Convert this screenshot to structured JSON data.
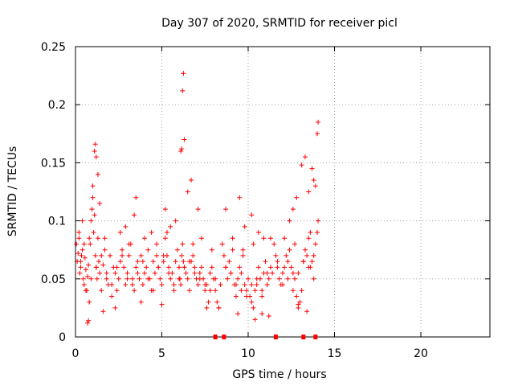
{
  "chart_data": {
    "type": "scatter",
    "title": "Day 307 of 2020, SRMTID for receiver picl",
    "xlabel": "GPS time / hours",
    "ylabel": "SRMTID / TECUs",
    "xlim": [
      0,
      24
    ],
    "ylim": [
      0,
      0.25
    ],
    "x_ticks": [
      0,
      5,
      10,
      15,
      20
    ],
    "x_tick_labels": [
      "0",
      "5",
      "10",
      "15",
      "20"
    ],
    "y_ticks": [
      0,
      0.05,
      0.1,
      0.15,
      0.2,
      0.25
    ],
    "y_tick_labels": [
      "0",
      "0.05",
      "0.1",
      "0.15",
      "0.2",
      "0.25"
    ],
    "grid": true,
    "marker": "plus",
    "color": "#ff0000",
    "series": [
      {
        "name": "SRMTID",
        "x": [
          0.05,
          0.1,
          0.15,
          0.2,
          0.25,
          0.3,
          0.35,
          0.4,
          0.45,
          0.5,
          0.55,
          0.6,
          0.65,
          0.7,
          0.75,
          0.8,
          0.85,
          0.9,
          0.95,
          1.0,
          1.05,
          1.1,
          1.15,
          1.2,
          1.25,
          1.3,
          1.35,
          1.4,
          1.5,
          1.6,
          1.7,
          1.8,
          1.9,
          2.0,
          2.1,
          2.2,
          2.3,
          2.4,
          2.5,
          2.6,
          2.7,
          2.8,
          2.9,
          3.0,
          3.1,
          3.2,
          3.3,
          3.4,
          3.5,
          3.6,
          3.7,
          3.8,
          3.9,
          4.0,
          4.1,
          4.2,
          4.3,
          4.4,
          4.5,
          4.6,
          4.7,
          4.8,
          4.9,
          5.0,
          5.1,
          5.2,
          5.3,
          5.4,
          5.5,
          5.6,
          5.7,
          5.8,
          5.9,
          6.0,
          6.05,
          6.1,
          6.15,
          6.2,
          6.25,
          6.3,
          6.4,
          6.5,
          6.6,
          6.7,
          6.8,
          6.9,
          7.0,
          7.1,
          7.2,
          7.3,
          7.4,
          7.5,
          7.6,
          7.7,
          7.8,
          7.9,
          8.0,
          8.1,
          8.2,
          8.3,
          8.4,
          8.6,
          8.7,
          8.8,
          8.9,
          9.0,
          9.1,
          9.2,
          9.3,
          9.4,
          9.5,
          9.6,
          9.7,
          9.8,
          9.9,
          10.0,
          10.1,
          10.2,
          10.3,
          10.4,
          10.5,
          10.6,
          10.7,
          10.8,
          10.9,
          11.0,
          11.1,
          11.2,
          11.3,
          11.4,
          11.6,
          11.7,
          11.8,
          11.9,
          12.0,
          12.1,
          12.2,
          12.3,
          12.4,
          12.5,
          12.6,
          12.7,
          12.8,
          12.9,
          13.0,
          13.1,
          13.2,
          13.3,
          13.4,
          13.5,
          13.6,
          13.7,
          13.8,
          13.9,
          14.0,
          14.05,
          0.3,
          0.6,
          0.9,
          1.2,
          1.5,
          1.8,
          2.1,
          2.4,
          2.7,
          3.0,
          3.3,
          3.6,
          3.9,
          4.2,
          4.5,
          4.8,
          5.1,
          5.4,
          5.7,
          6.0,
          6.3,
          6.6,
          6.9,
          7.2,
          7.5,
          7.8,
          8.1,
          8.7,
          9.0,
          9.3,
          9.6,
          9.9,
          10.2,
          10.5,
          10.8,
          11.1,
          11.7,
          12.0,
          12.3,
          12.6,
          12.9,
          13.2,
          13.5,
          13.8,
          0.4,
          0.8,
          1.0,
          1.1,
          1.15,
          1.2,
          1.3,
          1.4,
          2.9,
          3.4,
          3.5,
          4.4,
          5.2,
          5.5,
          5.8,
          6.1,
          6.15,
          6.2,
          6.25,
          6.3,
          6.5,
          6.7,
          7.1,
          8.7,
          9.5,
          9.8,
          10.2,
          10.6,
          11.3,
          12.4,
          12.6,
          12.8,
          13.1,
          13.3,
          13.5,
          13.7,
          13.8,
          13.9,
          14.0,
          14.05,
          0.7,
          0.75,
          1.6,
          2.3,
          3.8,
          5.0,
          7.6,
          8.3,
          9.4,
          10.4,
          10.8,
          11.2,
          12.9,
          13.4,
          0.2,
          0.5,
          1.7,
          2.6,
          3.1,
          4.0,
          4.7,
          5.3,
          6.8,
          7.3,
          7.9,
          8.5,
          9.1,
          9.7,
          10.3,
          10.9,
          11.5,
          12.1,
          12.7,
          13.6
        ],
        "y": [
          0.08,
          0.065,
          0.072,
          0.09,
          0.055,
          0.06,
          0.07,
          0.075,
          0.05,
          0.045,
          0.068,
          0.058,
          0.04,
          0.052,
          0.062,
          0.03,
          0.08,
          0.1,
          0.11,
          0.12,
          0.09,
          0.105,
          0.07,
          0.06,
          0.05,
          0.085,
          0.065,
          0.055,
          0.04,
          0.062,
          0.075,
          0.05,
          0.045,
          0.07,
          0.035,
          0.06,
          0.055,
          0.04,
          0.05,
          0.065,
          0.075,
          0.06,
          0.045,
          0.055,
          0.07,
          0.08,
          0.05,
          0.04,
          0.06,
          0.065,
          0.05,
          0.07,
          0.045,
          0.055,
          0.06,
          0.075,
          0.05,
          0.04,
          0.065,
          0.055,
          0.07,
          0.06,
          0.05,
          0.045,
          0.065,
          0.085,
          0.07,
          0.06,
          0.05,
          0.055,
          0.04,
          0.065,
          0.075,
          0.06,
          0.05,
          0.045,
          0.07,
          0.08,
          0.065,
          0.06,
          0.055,
          0.05,
          0.04,
          0.065,
          0.07,
          0.06,
          0.05,
          0.045,
          0.055,
          0.06,
          0.05,
          0.04,
          0.045,
          0.03,
          0.055,
          0.06,
          0.05,
          0.04,
          0.03,
          0.025,
          0.045,
          0.07,
          0.06,
          0.05,
          0.065,
          0.055,
          0.075,
          0.045,
          0.035,
          0.05,
          0.06,
          0.055,
          0.07,
          0.045,
          0.04,
          0.05,
          0.035,
          0.03,
          0.025,
          0.04,
          0.045,
          0.06,
          0.05,
          0.035,
          0.055,
          0.065,
          0.045,
          0.05,
          0.06,
          0.055,
          0.07,
          0.065,
          0.05,
          0.045,
          0.055,
          0.06,
          0.07,
          0.065,
          0.075,
          0.06,
          0.055,
          0.05,
          0.035,
          0.025,
          0.03,
          0.04,
          0.065,
          0.075,
          0.07,
          0.085,
          0.06,
          0.065,
          0.07,
          0.08,
          0.09,
          0.1,
          0.065,
          0.04,
          0.05,
          0.06,
          0.07,
          0.055,
          0.045,
          0.06,
          0.07,
          0.05,
          0.045,
          0.055,
          0.065,
          0.05,
          0.04,
          0.06,
          0.07,
          0.055,
          0.045,
          0.05,
          0.06,
          0.065,
          0.055,
          0.05,
          0.045,
          0.04,
          0.05,
          0.06,
          0.055,
          0.045,
          0.04,
          0.035,
          0.045,
          0.05,
          0.04,
          0.055,
          0.06,
          0.045,
          0.05,
          0.04,
          0.055,
          0.065,
          0.06,
          0.05,
          0.1,
          0.085,
          0.13,
          0.16,
          0.166,
          0.155,
          0.14,
          0.115,
          0.095,
          0.105,
          0.12,
          0.09,
          0.11,
          0.095,
          0.1,
          0.16,
          0.162,
          0.212,
          0.227,
          0.17,
          0.125,
          0.135,
          0.11,
          0.11,
          0.12,
          0.095,
          0.105,
          0.09,
          0.085,
          0.1,
          0.11,
          0.12,
          0.148,
          0.155,
          0.125,
          0.145,
          0.135,
          0.13,
          0.175,
          0.185,
          0.012,
          0.014,
          0.022,
          0.025,
          0.03,
          0.028,
          0.025,
          0.025,
          0.02,
          0.015,
          0.02,
          0.018,
          0.028,
          0.022,
          0.085,
          0.08,
          0.085,
          0.09,
          0.08,
          0.085,
          0.08,
          0.09,
          0.08,
          0.085,
          0.075,
          0.08,
          0.085,
          0.075,
          0.08,
          0.085,
          0.08,
          0.085,
          0.08,
          0.09
        ]
      }
    ],
    "ticks_along_x_axis": [
      8.1,
      8.6,
      11.6,
      13.2,
      13.9
    ]
  }
}
